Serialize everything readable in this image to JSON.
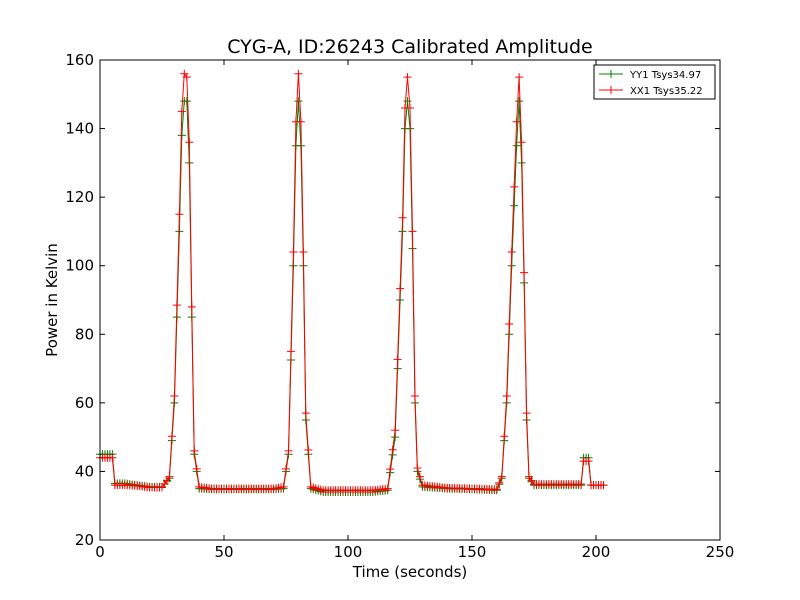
{
  "chart_data": {
    "type": "line",
    "title": "CYG-A, ID:26243 Calibrated Amplitude",
    "xlabel": "Time (seconds)",
    "ylabel": "Power in Kelvin",
    "xlim": [
      0,
      250
    ],
    "ylim": [
      20,
      160
    ],
    "xticks": [
      "0",
      "50",
      "100",
      "150",
      "200",
      "250"
    ],
    "yticks": [
      "20",
      "40",
      "60",
      "80",
      "100",
      "120",
      "140",
      "160"
    ],
    "grid": false,
    "legend_position": "top-right",
    "marker": "+",
    "series": [
      {
        "name": "YY1 Tsys34.97",
        "color": "#008000",
        "x": [
          0,
          5,
          6,
          10,
          15,
          20,
          25,
          28,
          30,
          32,
          33,
          34,
          35,
          36,
          37,
          38,
          40,
          45,
          50,
          60,
          70,
          74,
          76,
          78,
          79,
          80,
          81,
          82,
          83,
          85,
          90,
          100,
          110,
          116,
          119,
          122,
          123,
          124,
          125,
          126,
          127,
          128,
          130,
          140,
          150,
          160,
          162,
          164,
          166,
          168,
          169,
          170,
          171,
          172,
          173,
          175,
          180,
          190,
          194,
          195,
          197,
          198,
          200,
          203
        ],
        "y": [
          45,
          45,
          36.5,
          36.5,
          36,
          35.5,
          35.5,
          38,
          60,
          110,
          138,
          148,
          148,
          130,
          85,
          45,
          35,
          34.8,
          34.8,
          34.8,
          34.8,
          35,
          45,
          100,
          135,
          148,
          135,
          100,
          55,
          35,
          34,
          34,
          34,
          34.5,
          50,
          110,
          140,
          148,
          140,
          105,
          60,
          40,
          35.5,
          35,
          34.8,
          34.5,
          38,
          60,
          100,
          135,
          148,
          130,
          95,
          55,
          38,
          36,
          36,
          36,
          36,
          44,
          44,
          36,
          36,
          36
        ]
      },
      {
        "name": "XX1 Tsys35.22",
        "color": "#ff0000",
        "x": [
          0,
          5,
          6,
          10,
          15,
          20,
          25,
          28,
          30,
          32,
          33,
          34,
          35,
          36,
          37,
          38,
          40,
          45,
          50,
          60,
          70,
          74,
          76,
          78,
          79,
          80,
          81,
          82,
          83,
          85,
          90,
          100,
          110,
          116,
          119,
          122,
          123,
          124,
          125,
          126,
          127,
          128,
          130,
          140,
          150,
          160,
          162,
          164,
          166,
          168,
          169,
          170,
          171,
          172,
          173,
          175,
          180,
          190,
          194,
          195,
          197,
          198,
          200,
          203
        ],
        "y": [
          44,
          44,
          36,
          36,
          35.8,
          35.3,
          35.3,
          38.5,
          62,
          115,
          145,
          156,
          155,
          136,
          88,
          46,
          35.5,
          35,
          35,
          35,
          35,
          35.5,
          46,
          104,
          142,
          156,
          142,
          104,
          57,
          35.5,
          34.5,
          34.5,
          34.5,
          35,
          52,
          114,
          146,
          155,
          146,
          110,
          62,
          41,
          36,
          35.2,
          35,
          34.8,
          38.5,
          62,
          104,
          142,
          155,
          136,
          98,
          57,
          38.5,
          36.3,
          36.3,
          36.3,
          36.3,
          43,
          43,
          36,
          36,
          36
        ]
      }
    ]
  }
}
